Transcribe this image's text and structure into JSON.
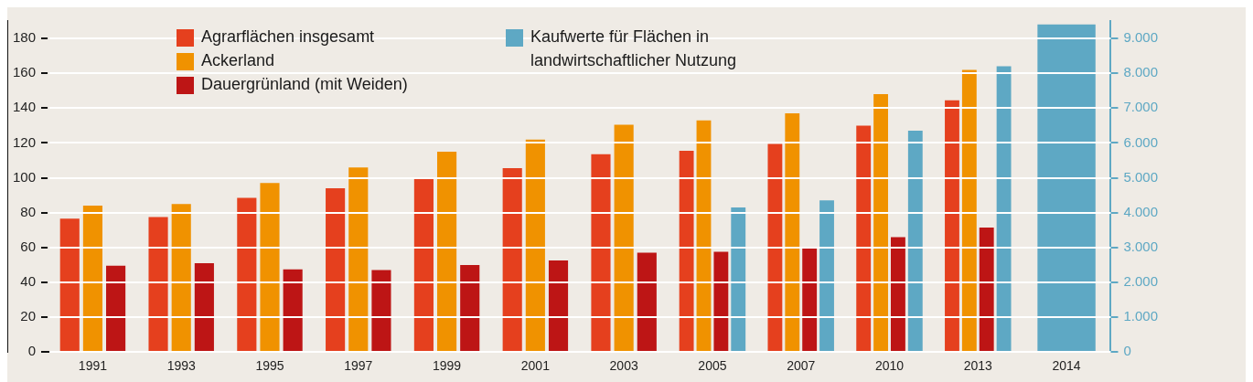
{
  "chart_data": {
    "type": "bar",
    "categories": [
      "1991",
      "1993",
      "1995",
      "1997",
      "1999",
      "2001",
      "2003",
      "2005",
      "2007",
      "2010",
      "2013",
      "2014"
    ],
    "series": [
      {
        "name": "Agrarflächen insgesamt",
        "color": "#e5401e",
        "values": [
          76.5,
          77.5,
          88.5,
          94,
          99.5,
          105.5,
          113.5,
          115.5,
          119.5,
          130,
          144.5,
          null
        ]
      },
      {
        "name": "Ackerland",
        "color": "#f09200",
        "values": [
          84,
          85,
          97,
          106,
          115,
          122,
          130.5,
          133,
          137,
          148,
          162,
          null
        ]
      },
      {
        "name": "Dauergrünland (mit Weiden)",
        "color": "#bd1515",
        "values": [
          49.5,
          51,
          47.5,
          47,
          50,
          52.5,
          57,
          57.5,
          60,
          66,
          71.5,
          null
        ]
      },
      {
        "name": "Kaufwerte für Flächen in landwirtschaftlicher Nutzung",
        "color": "#5ea8c4",
        "axis": "y2",
        "values": [
          null,
          null,
          null,
          null,
          null,
          null,
          null,
          4150,
          4350,
          6350,
          8200,
          9400
        ]
      }
    ],
    "ylim": [
      0,
      190
    ],
    "yticks": [
      0,
      20,
      40,
      60,
      80,
      100,
      120,
      140,
      160,
      180
    ],
    "y2lim": [
      0,
      9500
    ],
    "y2ticks": [
      {
        "value": 0,
        "label": "0"
      },
      {
        "value": 1000,
        "label": "1.000"
      },
      {
        "value": 2000,
        "label": "2.000"
      },
      {
        "value": 3000,
        "label": "3.000"
      },
      {
        "value": 4000,
        "label": "4.000"
      },
      {
        "value": 5000,
        "label": "5.000"
      },
      {
        "value": 6000,
        "label": "6.000"
      },
      {
        "value": 7000,
        "label": "7.000"
      },
      {
        "value": 8000,
        "label": "8.000"
      },
      {
        "value": 9000,
        "label": "9.000"
      }
    ],
    "grid": "y",
    "legend": "top left"
  }
}
